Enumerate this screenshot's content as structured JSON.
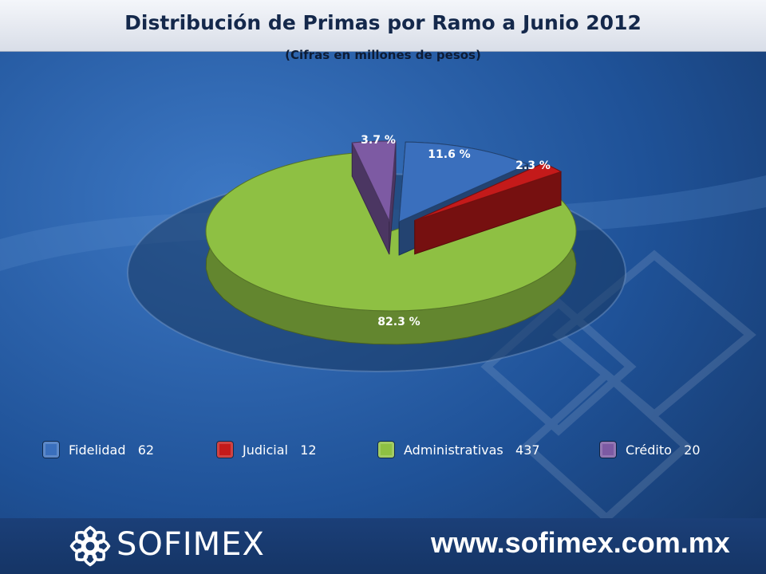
{
  "header": {
    "title": "Distribución de Primas por Ramo a Junio 2012",
    "subtitle": "(Cifras en millones de pesos)"
  },
  "chart_data": {
    "type": "pie",
    "title": "Distribución de Primas por Ramo a Junio 2012",
    "subtitle": "(Cifras en millones de pesos)",
    "categories": [
      "Fidelidad",
      "Judicial",
      "Administrativas",
      "Crédito"
    ],
    "values": [
      62,
      12,
      437,
      20
    ],
    "percent_labels": [
      "11.6 %",
      "2.3 %",
      "82.3 %",
      "3.7 %"
    ],
    "percents": [
      11.6,
      2.3,
      82.3,
      3.7
    ],
    "colors": [
      "#3a6fbd",
      "#c41a1a",
      "#8ec043",
      "#7d5aa3"
    ],
    "exploded": true,
    "legend_placement": "bottom"
  },
  "legend": [
    {
      "label": "Fidelidad   62",
      "color": "#3a6fbd"
    },
    {
      "label": "Judicial   12",
      "color": "#c41a1a"
    },
    {
      "label": "Administrativas   437",
      "color": "#8ec043"
    },
    {
      "label": "Crédito   20",
      "color": "#7d5aa3"
    }
  ],
  "footer": {
    "brand": "SOFIMEX",
    "website": "www.sofimex.com.mx"
  }
}
